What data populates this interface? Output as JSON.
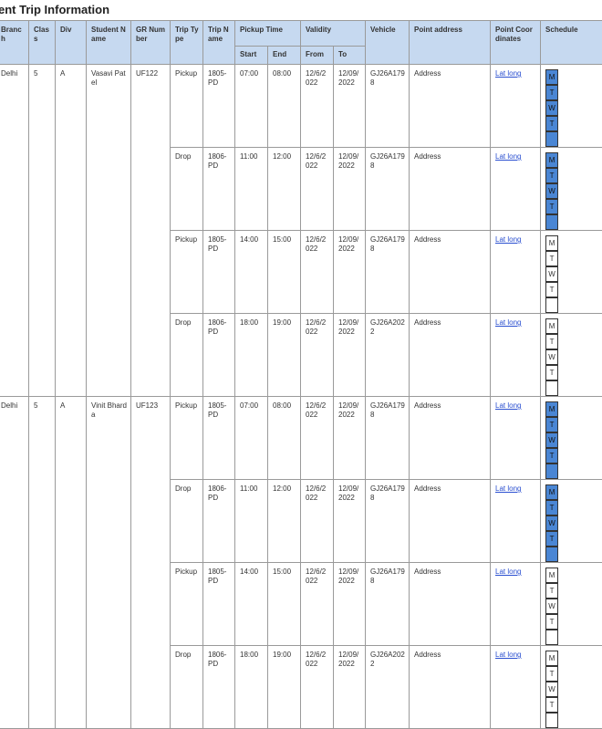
{
  "title": "ent Trip Information",
  "columns": {
    "branch": "Branch",
    "class": "Class",
    "div": "Div",
    "student_name": "Student Name",
    "gr_number": "GR Number",
    "trip_type": "Trip Type",
    "trip_name": "Trip Name",
    "pickup_time": "Pickup Time",
    "start": "Start",
    "end": "End",
    "validity": "Validity",
    "from": "From",
    "to": "To",
    "vehicle": "Vehicle",
    "point_address": "Point address",
    "point_coordinates": "Point Coordinates",
    "schedule": "Schedule"
  },
  "days": [
    "M",
    "T",
    "W",
    "T"
  ],
  "students": [
    {
      "branch": "Delhi",
      "class": "5",
      "div": "A",
      "name": "Vasavi Patel",
      "gr": "UF122",
      "trips": [
        {
          "type": "Pickup",
          "name": "1805-PD",
          "start": "07:00",
          "end": "08:00",
          "from": "12/6/2022",
          "to": "12/09/2022",
          "vehicle": "GJ26A1798",
          "address": "Address",
          "coordinates": "Lat long",
          "scheduled": true
        },
        {
          "type": "Drop",
          "name": "1806-PD",
          "start": "11:00",
          "end": "12:00",
          "from": "12/6/2022",
          "to": "12/09/2022",
          "vehicle": "GJ26A1798",
          "address": "Address",
          "coordinates": "Lat long",
          "scheduled": true
        },
        {
          "type": "Pickup",
          "name": "1805-PD",
          "start": "14:00",
          "end": "15:00",
          "from": "12/6/2022",
          "to": "12/09/2022",
          "vehicle": "GJ26A1798",
          "address": "Address",
          "coordinates": "Lat long",
          "scheduled": false
        },
        {
          "type": "Drop",
          "name": "1806-PD",
          "start": "18:00",
          "end": "19:00",
          "from": "12/6/2022",
          "to": "12/09/2022",
          "vehicle": "GJ26A2022",
          "address": "Address",
          "coordinates": "Lat long",
          "scheduled": false
        }
      ]
    },
    {
      "branch": "Delhi",
      "class": "5",
      "div": "A",
      "name": "Vinit Bharda",
      "gr": "UF123",
      "trips": [
        {
          "type": "Pickup",
          "name": "1805-PD",
          "start": "07:00",
          "end": "08:00",
          "from": "12/6/2022",
          "to": "12/09/2022",
          "vehicle": "GJ26A1798",
          "address": "Address",
          "coordinates": "Lat long",
          "scheduled": true
        },
        {
          "type": "Drop",
          "name": "1806-PD",
          "start": "11:00",
          "end": "12:00",
          "from": "12/6/2022",
          "to": "12/09/2022",
          "vehicle": "GJ26A1798",
          "address": "Address",
          "coordinates": "Lat long",
          "scheduled": true
        },
        {
          "type": "Pickup",
          "name": "1805-PD",
          "start": "14:00",
          "end": "15:00",
          "from": "12/6/2022",
          "to": "12/09/2022",
          "vehicle": "GJ26A1798",
          "address": "Address",
          "coordinates": "Lat long",
          "scheduled": false
        },
        {
          "type": "Drop",
          "name": "1806-PD",
          "start": "18:00",
          "end": "19:00",
          "from": "12/6/2022",
          "to": "12/09/2022",
          "vehicle": "GJ26A2022",
          "address": "Address",
          "coordinates": "Lat long",
          "scheduled": false
        }
      ]
    }
  ]
}
